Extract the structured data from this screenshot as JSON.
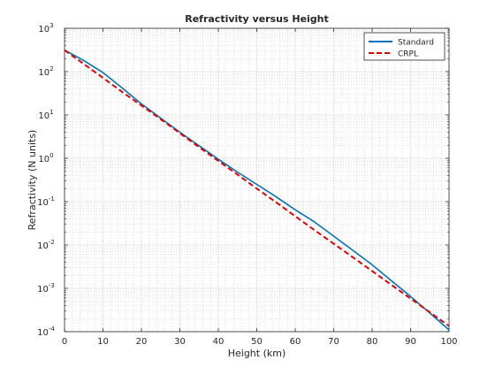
{
  "chart_data": {
    "type": "line",
    "title": "Refractivity versus Height",
    "xlabel": "Height (km)",
    "ylabel": "Refractivity (N units)",
    "xlim": [
      0,
      100
    ],
    "ylim": [
      0.0001,
      1000
    ],
    "yscale": "log",
    "grid": true,
    "minor_grid": true,
    "legend_position": "top-right",
    "x_ticks": [
      "0",
      "10",
      "20",
      "30",
      "40",
      "50",
      "60",
      "70",
      "80",
      "90",
      "100"
    ],
    "y_tick_exponents": [
      "-4",
      "-3",
      "-2",
      "-1",
      "0",
      "1",
      "2",
      "3"
    ],
    "y_tick_base": "10",
    "series": [
      {
        "name": "Standard",
        "color": "#0072BD",
        "style": "solid",
        "x": [
          0,
          5,
          10,
          15,
          20,
          25,
          30,
          35,
          40,
          45,
          50,
          55,
          60,
          65,
          70,
          75,
          80,
          85,
          90,
          95,
          100
        ],
        "y": [
          315,
          180,
          95,
          42,
          18,
          8.5,
          4.0,
          1.95,
          0.95,
          0.48,
          0.25,
          0.13,
          0.065,
          0.034,
          0.016,
          0.0075,
          0.0035,
          0.0015,
          0.00065,
          0.00027,
          0.00011
        ]
      },
      {
        "name": "CRPL",
        "color": "#E60000",
        "style": "dashed",
        "x": [
          0,
          5,
          10,
          15,
          20,
          25,
          30,
          35,
          40,
          45,
          50,
          55,
          60,
          65,
          70,
          75,
          80,
          85,
          90,
          95,
          100
        ],
        "y": [
          313,
          150,
          72,
          34,
          16.5,
          8.0,
          3.8,
          1.8,
          0.87,
          0.42,
          0.2,
          0.097,
          0.046,
          0.022,
          0.0107,
          0.0052,
          0.0025,
          0.0012,
          0.00058,
          0.00028,
          0.000135
        ]
      }
    ]
  }
}
